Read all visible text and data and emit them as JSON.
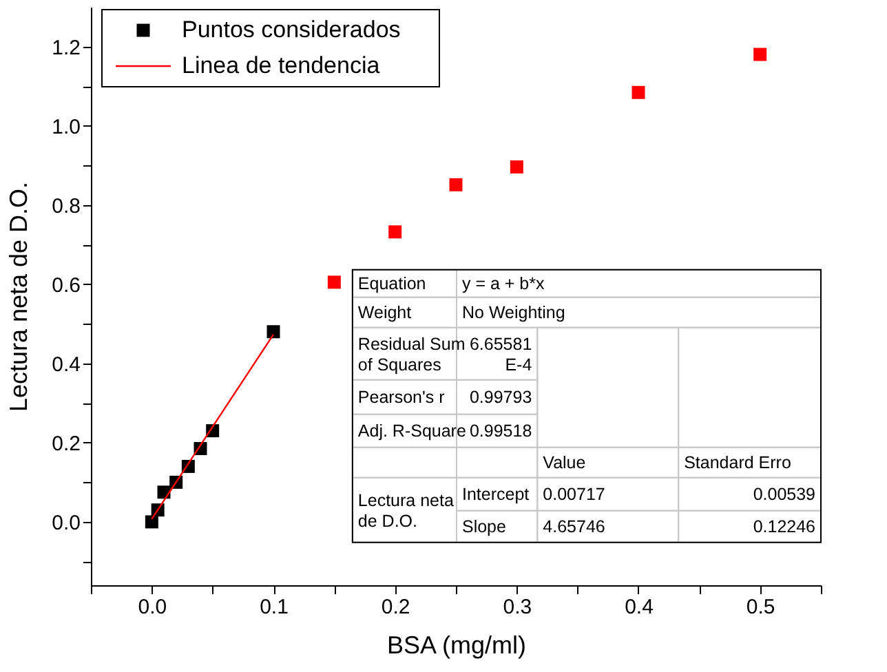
{
  "chart_data": {
    "type": "scatter",
    "xlabel": "BSA (mg/ml)",
    "ylabel": "Lectura neta de D.O.",
    "series": [
      {
        "name": "Puntos considerados",
        "type": "scatter",
        "marker": "square",
        "color": "#000000",
        "x": [
          0,
          0.005,
          0.01,
          0.02,
          0.03,
          0.04,
          0.05,
          0.1
        ],
        "values": [
          0.0,
          0.03,
          0.075,
          0.1,
          0.14,
          0.185,
          0.23,
          0.48
        ]
      },
      {
        "type": "scatter",
        "marker": "square",
        "color": "#ff0000",
        "x": [
          0.15,
          0.2,
          0.25,
          0.3,
          0.4,
          0.5
        ],
        "values": [
          0.605,
          0.732,
          0.851,
          0.896,
          1.084,
          1.18
        ]
      },
      {
        "name": "Linea de tendencia",
        "type": "line",
        "marker": "none",
        "color": "#ff0000",
        "x": [
          0,
          0.1
        ],
        "values": [
          0.007,
          0.473
        ]
      }
    ],
    "xlim": [
      -0.05,
      0.55
    ],
    "ylim": [
      -0.16,
      1.3
    ],
    "xticks": [
      {
        "value": -0.05,
        "label": null
      },
      {
        "value": 0,
        "label": "0.0"
      },
      {
        "value": 0.05,
        "label": null
      },
      {
        "value": 0.1,
        "label": "0.1"
      },
      {
        "value": 0.15,
        "label": null
      },
      {
        "value": 0.2,
        "label": "0.2"
      },
      {
        "value": 0.25,
        "label": null
      },
      {
        "value": 0.3,
        "label": "0.3"
      },
      {
        "value": 0.35,
        "label": null
      },
      {
        "value": 0.4,
        "label": "0.4"
      },
      {
        "value": 0.45,
        "label": null
      },
      {
        "value": 0.5,
        "label": "0.5"
      },
      {
        "value": 0.55,
        "label": null
      }
    ],
    "yticks": [
      {
        "value": -0.1,
        "label": null
      },
      {
        "value": 0,
        "label": "0.0"
      },
      {
        "value": 0.1,
        "label": null
      },
      {
        "value": 0.2,
        "label": "0.2"
      },
      {
        "value": 0.3,
        "label": null
      },
      {
        "value": 0.4,
        "label": "0.4"
      },
      {
        "value": 0.5,
        "label": null
      },
      {
        "value": 0.6,
        "label": "0.6"
      },
      {
        "value": 0.7,
        "label": null
      },
      {
        "value": 0.8,
        "label": "0.8"
      },
      {
        "value": 0.9,
        "label": null
      },
      {
        "value": 1.0,
        "label": "1.0"
      },
      {
        "value": 1.1,
        "label": null
      },
      {
        "value": 1.2,
        "label": "1.2"
      }
    ],
    "annotations": [
      "Equation",
      "y = a + b*x",
      "Weight",
      "No Weighting",
      "Residual Sum\nof Squares",
      "6.65581\nE-4",
      "Pearson's r",
      "0.99793",
      "Adj. R-Square",
      "0.99518",
      "Value",
      "Standard Erro",
      "Lectura neta\nde D.O.",
      "Intercept",
      "0.00717",
      "0.00539",
      "Slope",
      "4.65746",
      "0.12246"
    ],
    "legend": "top left",
    "line_style": "solid",
    "grid": false
  }
}
